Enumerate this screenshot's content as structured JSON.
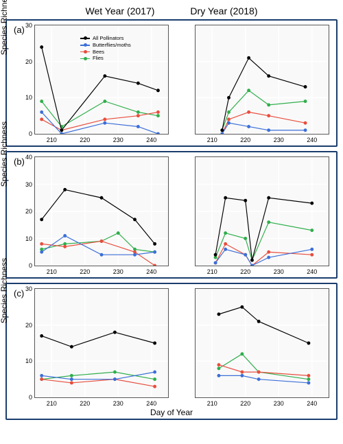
{
  "columns": {
    "left": "Wet Year (2017)",
    "right": "Dry Year (2018)"
  },
  "labels": {
    "y": "Species Richness",
    "x": "Day of Year"
  },
  "letters": {
    "a": "(a)",
    "b": "(b)",
    "c": "(c)"
  },
  "legend": [
    {
      "label": "All Pollinators",
      "color": "#000000"
    },
    {
      "label": "Butterflies/moths",
      "color": "#3b6fd8"
    },
    {
      "label": "Bees",
      "color": "#e84d3d"
    },
    {
      "label": "Flies",
      "color": "#2fae4b"
    }
  ],
  "style": {
    "panel_border": "#1a3d6d",
    "plot_bg": "#f9f9f9",
    "plot_border": "#555555",
    "grid_color": "#ffffff",
    "tick_font": 9,
    "label_font": 12,
    "line_width": 1.2,
    "marker_size": 2.5
  },
  "panels": {
    "a": {
      "xlim": [
        205,
        245
      ],
      "ylim": [
        0,
        30
      ],
      "yticks": [
        0,
        10,
        20,
        30
      ],
      "xticks": [
        210,
        220,
        230,
        240
      ],
      "left": {
        "All": [
          [
            207,
            24
          ],
          [
            213,
            1
          ],
          [
            226,
            16
          ],
          [
            236,
            14
          ],
          [
            242,
            12
          ]
        ],
        "Flies": [
          [
            207,
            9
          ],
          [
            213,
            2
          ],
          [
            226,
            9
          ],
          [
            236,
            6
          ],
          [
            242,
            5
          ]
        ],
        "Bees": [
          [
            207,
            4
          ],
          [
            213,
            1
          ],
          [
            226,
            4
          ],
          [
            236,
            5
          ],
          [
            242,
            6
          ]
        ],
        "Butt": [
          [
            207,
            6
          ],
          [
            213,
            0
          ],
          [
            226,
            3
          ],
          [
            236,
            2
          ],
          [
            242,
            0
          ]
        ]
      },
      "right": {
        "All": [
          [
            213,
            1
          ],
          [
            215,
            10
          ],
          [
            221,
            21
          ],
          [
            227,
            16
          ],
          [
            238,
            13
          ]
        ],
        "Flies": [
          [
            213,
            1
          ],
          [
            215,
            6
          ],
          [
            221,
            12
          ],
          [
            227,
            8
          ],
          [
            238,
            9
          ]
        ],
        "Bees": [
          [
            213,
            0
          ],
          [
            215,
            4
          ],
          [
            221,
            6
          ],
          [
            227,
            5
          ],
          [
            238,
            3
          ]
        ],
        "Butt": [
          [
            213,
            0
          ],
          [
            215,
            3
          ],
          [
            221,
            2
          ],
          [
            227,
            1
          ],
          [
            238,
            1
          ]
        ]
      }
    },
    "b": {
      "xlim": [
        205,
        245
      ],
      "ylim": [
        0,
        40
      ],
      "yticks": [
        0,
        10,
        20,
        30,
        40
      ],
      "xticks": [
        210,
        220,
        230,
        240
      ],
      "left": {
        "All": [
          [
            207,
            17
          ],
          [
            214,
            28
          ],
          [
            225,
            25
          ],
          [
            235,
            17
          ],
          [
            241,
            8
          ]
        ],
        "Flies": [
          [
            207,
            6
          ],
          [
            214,
            8
          ],
          [
            225,
            9
          ],
          [
            230,
            12
          ],
          [
            235,
            6
          ],
          [
            241,
            5
          ]
        ],
        "Bees": [
          [
            207,
            8
          ],
          [
            214,
            7
          ],
          [
            225,
            9
          ],
          [
            235,
            5
          ],
          [
            241,
            0
          ]
        ],
        "Butt": [
          [
            207,
            5
          ],
          [
            214,
            11
          ],
          [
            225,
            4
          ],
          [
            235,
            4
          ],
          [
            241,
            5
          ]
        ]
      },
      "right": {
        "All": [
          [
            211,
            4
          ],
          [
            214,
            25
          ],
          [
            220,
            24
          ],
          [
            222,
            2
          ],
          [
            227,
            25
          ],
          [
            240,
            23
          ]
        ],
        "Flies": [
          [
            211,
            3
          ],
          [
            214,
            12
          ],
          [
            220,
            10
          ],
          [
            222,
            2
          ],
          [
            227,
            16
          ],
          [
            240,
            13
          ]
        ],
        "Bees": [
          [
            211,
            1
          ],
          [
            214,
            8
          ],
          [
            220,
            4
          ],
          [
            222,
            0
          ],
          [
            227,
            5
          ],
          [
            240,
            4
          ]
        ],
        "Butt": [
          [
            211,
            1
          ],
          [
            214,
            6
          ],
          [
            220,
            4
          ],
          [
            222,
            0
          ],
          [
            227,
            3
          ],
          [
            240,
            6
          ]
        ]
      }
    },
    "c": {
      "xlim": [
        205,
        245
      ],
      "ylim": [
        0,
        30
      ],
      "yticks": [
        0,
        10,
        20,
        30
      ],
      "xticks": [
        210,
        220,
        230,
        240
      ],
      "left": {
        "All": [
          [
            207,
            17
          ],
          [
            216,
            14
          ],
          [
            229,
            18
          ],
          [
            241,
            15
          ]
        ],
        "Flies": [
          [
            207,
            5
          ],
          [
            216,
            6
          ],
          [
            229,
            7
          ],
          [
            241,
            5
          ]
        ],
        "Bees": [
          [
            207,
            5
          ],
          [
            216,
            4
          ],
          [
            229,
            5
          ],
          [
            241,
            3
          ]
        ],
        "Butt": [
          [
            207,
            6
          ],
          [
            216,
            5
          ],
          [
            229,
            5
          ],
          [
            241,
            7
          ]
        ]
      },
      "right": {
        "All": [
          [
            212,
            23
          ],
          [
            219,
            25
          ],
          [
            224,
            21
          ],
          [
            239,
            15
          ]
        ],
        "Flies": [
          [
            212,
            8
          ],
          [
            219,
            12
          ],
          [
            224,
            7
          ],
          [
            239,
            5
          ]
        ],
        "Bees": [
          [
            212,
            9
          ],
          [
            219,
            7
          ],
          [
            224,
            7
          ],
          [
            239,
            6
          ]
        ],
        "Butt": [
          [
            212,
            6
          ],
          [
            219,
            6
          ],
          [
            224,
            5
          ],
          [
            239,
            4
          ]
        ]
      }
    }
  }
}
